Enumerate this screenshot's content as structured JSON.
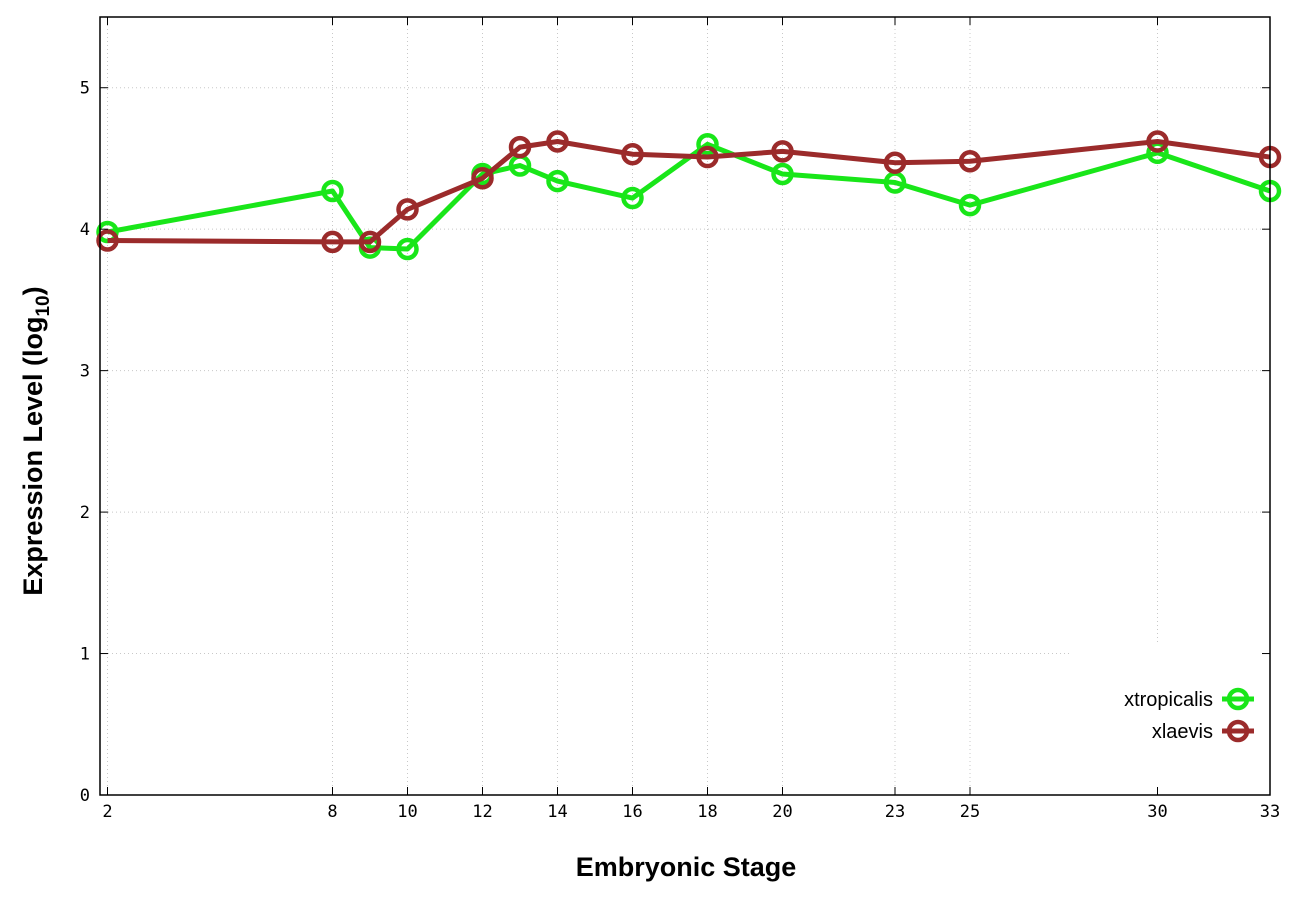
{
  "chart_data": {
    "type": "line",
    "xlabel": "Embryonic Stage",
    "ylabel": "Expression Level (log",
    "ylabel_sub": "10",
    "ylabel_close": ")",
    "xlim": [
      1.8,
      33
    ],
    "ylim": [
      0,
      5.5
    ],
    "x_ticks": [
      2,
      8,
      10,
      12,
      14,
      16,
      18,
      20,
      23,
      25,
      30,
      33
    ],
    "y_ticks": [
      0,
      1,
      2,
      3,
      4,
      5
    ],
    "grid": true,
    "legend_placement": "bottom-right",
    "x": [
      2,
      8,
      9,
      10,
      12,
      13,
      14,
      16,
      18,
      20,
      23,
      25,
      30,
      33
    ],
    "series": [
      {
        "name": "xtropicalis",
        "color": "#19e619",
        "values": [
          3.98,
          4.27,
          3.87,
          3.86,
          4.39,
          4.45,
          4.34,
          4.22,
          4.6,
          4.39,
          4.33,
          4.17,
          4.54,
          4.27
        ]
      },
      {
        "name": "xlaevis",
        "color": "#9b2b2b",
        "values": [
          3.92,
          3.91,
          3.91,
          4.14,
          4.36,
          4.58,
          4.62,
          4.53,
          4.51,
          4.55,
          4.47,
          4.48,
          4.62,
          4.51
        ]
      }
    ]
  }
}
